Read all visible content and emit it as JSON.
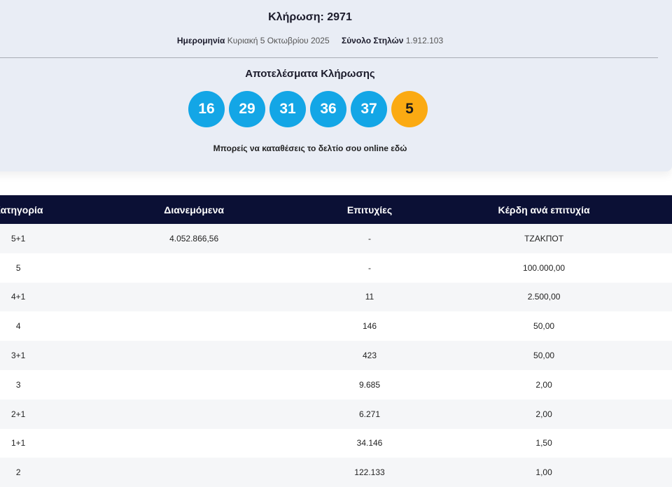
{
  "draw": {
    "title": "Κλήρωση: 2971",
    "date_label": "Ημερομηνία",
    "date_value": "Κυριακή 5 Οκτωβρίου 2025",
    "columns_label": "Σύνολο Στηλών",
    "columns_value": "1.912.103"
  },
  "results": {
    "title": "Αποτελέσματα Κλήρωσης",
    "numbers": [
      "16",
      "29",
      "31",
      "36",
      "37"
    ],
    "bonus": "5",
    "online_link": "Μπορείς να καταθέσεις το δελτίο σου online εδώ"
  },
  "colors": {
    "ball": "#13a6e6",
    "bonus": "#fbaa12",
    "header": "#0b1035",
    "panel": "#e9edf5"
  },
  "table": {
    "headers": [
      "Κατηγορία",
      "Διανεμόμενα",
      "Επιτυχίες",
      "Κέρδη ανά επιτυχία"
    ],
    "rows": [
      [
        "5+1",
        "4.052.866,56",
        "-",
        "ΤΖΑΚΠΟΤ"
      ],
      [
        "5",
        "",
        "-",
        "100.000,00"
      ],
      [
        "4+1",
        "",
        "11",
        "2.500,00"
      ],
      [
        "4",
        "",
        "146",
        "50,00"
      ],
      [
        "3+1",
        "",
        "423",
        "50,00"
      ],
      [
        "3",
        "",
        "9.685",
        "2,00"
      ],
      [
        "2+1",
        "",
        "6.271",
        "2,00"
      ],
      [
        "1+1",
        "",
        "34.146",
        "1,50"
      ],
      [
        "2",
        "",
        "122.133",
        "1,00"
      ]
    ]
  }
}
